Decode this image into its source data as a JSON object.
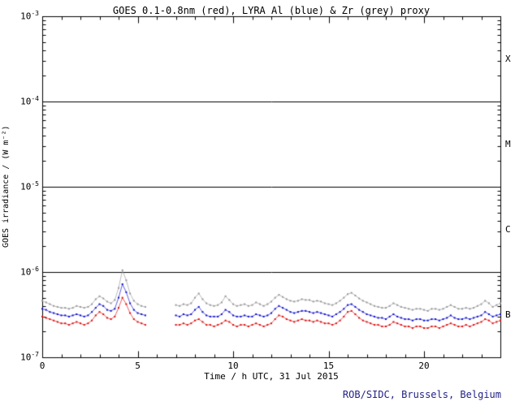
{
  "credit": "ROB/SIDC, Brussels, Belgium",
  "colors": {
    "axis": "#000000",
    "credit": "#222288",
    "goes_red": "#dd1111",
    "lyra_al_blue": "#1111cc",
    "lyra_zr_grey": "#999999"
  },
  "chart_data": {
    "type": "line",
    "title": "GOES 0.1-0.8nm (red), LYRA Al (blue) & Zr (grey) proxy",
    "xlabel": "Time / h UTC, 31 Jul 2015",
    "ylabel": "GOES irradiance / (W m⁻²)",
    "xlim": [
      0,
      24
    ],
    "ylim_log": [
      1e-07,
      0.001
    ],
    "x_ticks": [
      0,
      5,
      10,
      15,
      20
    ],
    "y_tick_exponents": [
      -3,
      -4,
      -5,
      -6,
      -7
    ],
    "flare_class_labels": [
      "X",
      "M",
      "C",
      "B"
    ],
    "threshold_lines": [
      0.0001,
      1e-05,
      1e-06
    ],
    "grid": false,
    "legend": "in-title",
    "y_scale": 1e-07,
    "x": [
      0,
      0.2,
      0.4,
      0.6,
      0.8,
      1,
      1.2,
      1.4,
      1.6,
      1.8,
      2,
      2.2,
      2.4,
      2.6,
      2.8,
      3,
      3.2,
      3.4,
      3.6,
      3.8,
      4,
      4.2,
      4.4,
      4.6,
      4.8,
      5,
      5.2,
      5.4,
      5.6,
      5.8,
      6,
      6.2,
      6.4,
      6.6,
      6.8,
      7,
      7.2,
      7.4,
      7.6,
      7.8,
      8,
      8.2,
      8.4,
      8.6,
      8.8,
      9,
      9.2,
      9.4,
      9.6,
      9.8,
      10,
      10.2,
      10.4,
      10.6,
      10.8,
      11,
      11.2,
      11.4,
      11.6,
      11.8,
      12,
      12.2,
      12.4,
      12.6,
      12.8,
      13,
      13.2,
      13.4,
      13.6,
      13.8,
      14,
      14.2,
      14.4,
      14.6,
      14.8,
      15,
      15.2,
      15.4,
      15.6,
      15.8,
      16,
      16.2,
      16.4,
      16.6,
      16.8,
      17,
      17.2,
      17.4,
      17.6,
      17.8,
      18,
      18.2,
      18.4,
      18.6,
      18.8,
      19,
      19.2,
      19.4,
      19.6,
      19.8,
      20,
      20.2,
      20.4,
      20.6,
      20.8,
      21,
      21.2,
      21.4,
      21.6,
      21.8,
      22,
      22.2,
      22.4,
      22.6,
      22.8,
      23,
      23.2,
      23.4,
      23.6,
      23.8,
      24
    ],
    "series": [
      {
        "name": "LYRA Zr proxy",
        "color": "#999999",
        "values": [
          4.6,
          4.4,
          4.2,
          4.0,
          3.9,
          3.8,
          3.8,
          3.7,
          3.8,
          4.0,
          3.9,
          3.8,
          3.9,
          4.2,
          4.8,
          5.2,
          4.9,
          4.5,
          4.3,
          4.7,
          6.5,
          10.5,
          8.0,
          5.6,
          4.6,
          4.2,
          4.0,
          3.9,
          null,
          null,
          null,
          null,
          null,
          null,
          null,
          4.1,
          4.0,
          4.2,
          4.1,
          4.3,
          5.0,
          5.6,
          4.8,
          4.3,
          4.1,
          4.0,
          4.1,
          4.4,
          5.2,
          4.7,
          4.2,
          4.0,
          4.1,
          4.2,
          4.0,
          4.1,
          4.4,
          4.2,
          4.0,
          4.2,
          4.5,
          5.0,
          5.4,
          5.1,
          4.8,
          4.6,
          4.5,
          4.6,
          4.8,
          4.7,
          4.7,
          4.5,
          4.6,
          4.5,
          4.3,
          4.2,
          4.1,
          4.3,
          4.6,
          5.0,
          5.5,
          5.7,
          5.3,
          4.9,
          4.6,
          4.4,
          4.2,
          4.0,
          3.9,
          3.8,
          3.8,
          4.0,
          4.3,
          4.1,
          3.9,
          3.8,
          3.7,
          3.6,
          3.7,
          3.7,
          3.6,
          3.5,
          3.7,
          3.7,
          3.6,
          3.7,
          3.9,
          4.1,
          3.9,
          3.7,
          3.7,
          3.8,
          3.7,
          3.8,
          4.0,
          4.2,
          4.6,
          4.3,
          3.9,
          4.1,
          4.3
        ]
      },
      {
        "name": "LYRA Al proxy",
        "color": "#1111cc",
        "values": [
          3.7,
          3.6,
          3.4,
          3.3,
          3.2,
          3.1,
          3.1,
          3.0,
          3.1,
          3.2,
          3.1,
          3.0,
          3.1,
          3.4,
          3.8,
          4.2,
          4.0,
          3.6,
          3.5,
          3.7,
          5.0,
          7.2,
          5.8,
          4.3,
          3.6,
          3.3,
          3.2,
          3.1,
          null,
          null,
          null,
          null,
          null,
          null,
          null,
          3.1,
          3.0,
          3.2,
          3.1,
          3.2,
          3.6,
          3.9,
          3.4,
          3.1,
          3.0,
          3.0,
          3.0,
          3.2,
          3.6,
          3.4,
          3.1,
          3.0,
          3.0,
          3.1,
          3.0,
          3.0,
          3.2,
          3.1,
          3.0,
          3.1,
          3.3,
          3.7,
          4.0,
          3.8,
          3.6,
          3.4,
          3.3,
          3.4,
          3.5,
          3.5,
          3.4,
          3.3,
          3.4,
          3.3,
          3.2,
          3.1,
          3.0,
          3.2,
          3.4,
          3.7,
          4.1,
          4.2,
          3.9,
          3.6,
          3.4,
          3.2,
          3.1,
          3.0,
          2.9,
          2.9,
          2.8,
          3.0,
          3.2,
          3.0,
          2.9,
          2.8,
          2.8,
          2.7,
          2.8,
          2.8,
          2.7,
          2.7,
          2.8,
          2.8,
          2.7,
          2.8,
          2.9,
          3.1,
          2.9,
          2.8,
          2.8,
          2.9,
          2.8,
          2.9,
          3.0,
          3.1,
          3.4,
          3.2,
          3.0,
          3.1,
          3.2
        ]
      },
      {
        "name": "GOES 0.1-0.8nm",
        "color": "#dd1111",
        "values": [
          3.0,
          2.9,
          2.8,
          2.7,
          2.6,
          2.5,
          2.5,
          2.4,
          2.5,
          2.6,
          2.5,
          2.4,
          2.5,
          2.7,
          3.1,
          3.4,
          3.2,
          2.9,
          2.8,
          3.0,
          3.8,
          5.0,
          4.2,
          3.3,
          2.8,
          2.6,
          2.5,
          2.4,
          null,
          null,
          null,
          null,
          null,
          null,
          null,
          2.4,
          2.4,
          2.5,
          2.4,
          2.5,
          2.7,
          2.8,
          2.6,
          2.4,
          2.4,
          2.3,
          2.4,
          2.5,
          2.7,
          2.6,
          2.4,
          2.3,
          2.4,
          2.4,
          2.3,
          2.4,
          2.5,
          2.4,
          2.3,
          2.4,
          2.5,
          2.8,
          3.1,
          3.0,
          2.8,
          2.7,
          2.6,
          2.7,
          2.8,
          2.7,
          2.7,
          2.6,
          2.7,
          2.6,
          2.5,
          2.5,
          2.4,
          2.5,
          2.7,
          3.0,
          3.4,
          3.5,
          3.2,
          2.9,
          2.7,
          2.6,
          2.5,
          2.4,
          2.4,
          2.3,
          2.3,
          2.4,
          2.6,
          2.5,
          2.4,
          2.3,
          2.3,
          2.2,
          2.3,
          2.3,
          2.2,
          2.2,
          2.3,
          2.3,
          2.2,
          2.3,
          2.4,
          2.5,
          2.4,
          2.3,
          2.3,
          2.4,
          2.3,
          2.4,
          2.5,
          2.6,
          2.8,
          2.7,
          2.5,
          2.6,
          2.7
        ]
      }
    ]
  }
}
